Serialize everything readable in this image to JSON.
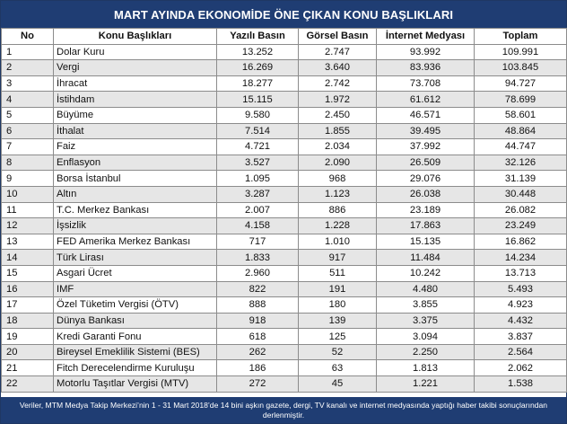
{
  "title": "MART AYINDA EKONOMİDE ÖNE ÇIKAN KONU BAŞLIKLARI",
  "columns": [
    "No",
    "Konu Başlıkları",
    "Yazılı Basın",
    "Görsel Basın",
    "İnternet Medyası",
    "Toplam"
  ],
  "rows": [
    {
      "no": "1",
      "topic": "Dolar Kuru",
      "print": "13.252",
      "visual": "2.747",
      "internet": "93.992",
      "total": "109.991"
    },
    {
      "no": "2",
      "topic": "Vergi",
      "print": "16.269",
      "visual": "3.640",
      "internet": "83.936",
      "total": "103.845"
    },
    {
      "no": "3",
      "topic": "İhracat",
      "print": "18.277",
      "visual": "2.742",
      "internet": "73.708",
      "total": "94.727"
    },
    {
      "no": "4",
      "topic": "İstihdam",
      "print": "15.115",
      "visual": "1.972",
      "internet": "61.612",
      "total": "78.699"
    },
    {
      "no": "5",
      "topic": "Büyüme",
      "print": "9.580",
      "visual": "2.450",
      "internet": "46.571",
      "total": "58.601"
    },
    {
      "no": "6",
      "topic": "İthalat",
      "print": "7.514",
      "visual": "1.855",
      "internet": "39.495",
      "total": "48.864"
    },
    {
      "no": "7",
      "topic": "Faiz",
      "print": "4.721",
      "visual": "2.034",
      "internet": "37.992",
      "total": "44.747"
    },
    {
      "no": "8",
      "topic": "Enflasyon",
      "print": "3.527",
      "visual": "2.090",
      "internet": "26.509",
      "total": "32.126"
    },
    {
      "no": "9",
      "topic": "Borsa İstanbul",
      "print": "1.095",
      "visual": "968",
      "internet": "29.076",
      "total": "31.139"
    },
    {
      "no": "10",
      "topic": "Altın",
      "print": "3.287",
      "visual": "1.123",
      "internet": "26.038",
      "total": "30.448"
    },
    {
      "no": "11",
      "topic": "T.C. Merkez Bankası",
      "print": "2.007",
      "visual": "886",
      "internet": "23.189",
      "total": "26.082"
    },
    {
      "no": "12",
      "topic": "İşsizlik",
      "print": "4.158",
      "visual": "1.228",
      "internet": "17.863",
      "total": "23.249"
    },
    {
      "no": "13",
      "topic": "FED Amerika Merkez Bankası",
      "print": "717",
      "visual": "1.010",
      "internet": "15.135",
      "total": "16.862"
    },
    {
      "no": "14",
      "topic": "Türk Lirası",
      "print": "1.833",
      "visual": "917",
      "internet": "11.484",
      "total": "14.234"
    },
    {
      "no": "15",
      "topic": "Asgari Ücret",
      "print": "2.960",
      "visual": "511",
      "internet": "10.242",
      "total": "13.713"
    },
    {
      "no": "16",
      "topic": "IMF",
      "print": "822",
      "visual": "191",
      "internet": "4.480",
      "total": "5.493"
    },
    {
      "no": "17",
      "topic": "Özel Tüketim Vergisi (ÖTV)",
      "print": "888",
      "visual": "180",
      "internet": "3.855",
      "total": "4.923"
    },
    {
      "no": "18",
      "topic": "Dünya Bankası",
      "print": "918",
      "visual": "139",
      "internet": "3.375",
      "total": "4.432"
    },
    {
      "no": "19",
      "topic": "Kredi Garanti Fonu",
      "print": "618",
      "visual": "125",
      "internet": "3.094",
      "total": "3.837"
    },
    {
      "no": "20",
      "topic": "Bireysel Emeklilik Sistemi (BES)",
      "print": "262",
      "visual": "52",
      "internet": "2.250",
      "total": "2.564"
    },
    {
      "no": "21",
      "topic": "Fitch Derecelendirme Kuruluşu",
      "print": "186",
      "visual": "63",
      "internet": "1.813",
      "total": "2.062"
    },
    {
      "no": "22",
      "topic": "Motorlu Taşıtlar Vergisi (MTV)",
      "print": "272",
      "visual": "45",
      "internet": "1.221",
      "total": "1.538"
    }
  ],
  "footnote": "Veriler, MTM Medya Takip Merkezi’nin 1 - 31 Mart 2018’de 14 bini aşkın gazete, dergi, TV kanalı ve internet medyasında yaptığı haber takibi sonuçlarından derlenmiştir.",
  "colors": {
    "header_bg": "#1f3d73",
    "stripe": "#e6e6e6",
    "border": "#8c8c8c"
  }
}
